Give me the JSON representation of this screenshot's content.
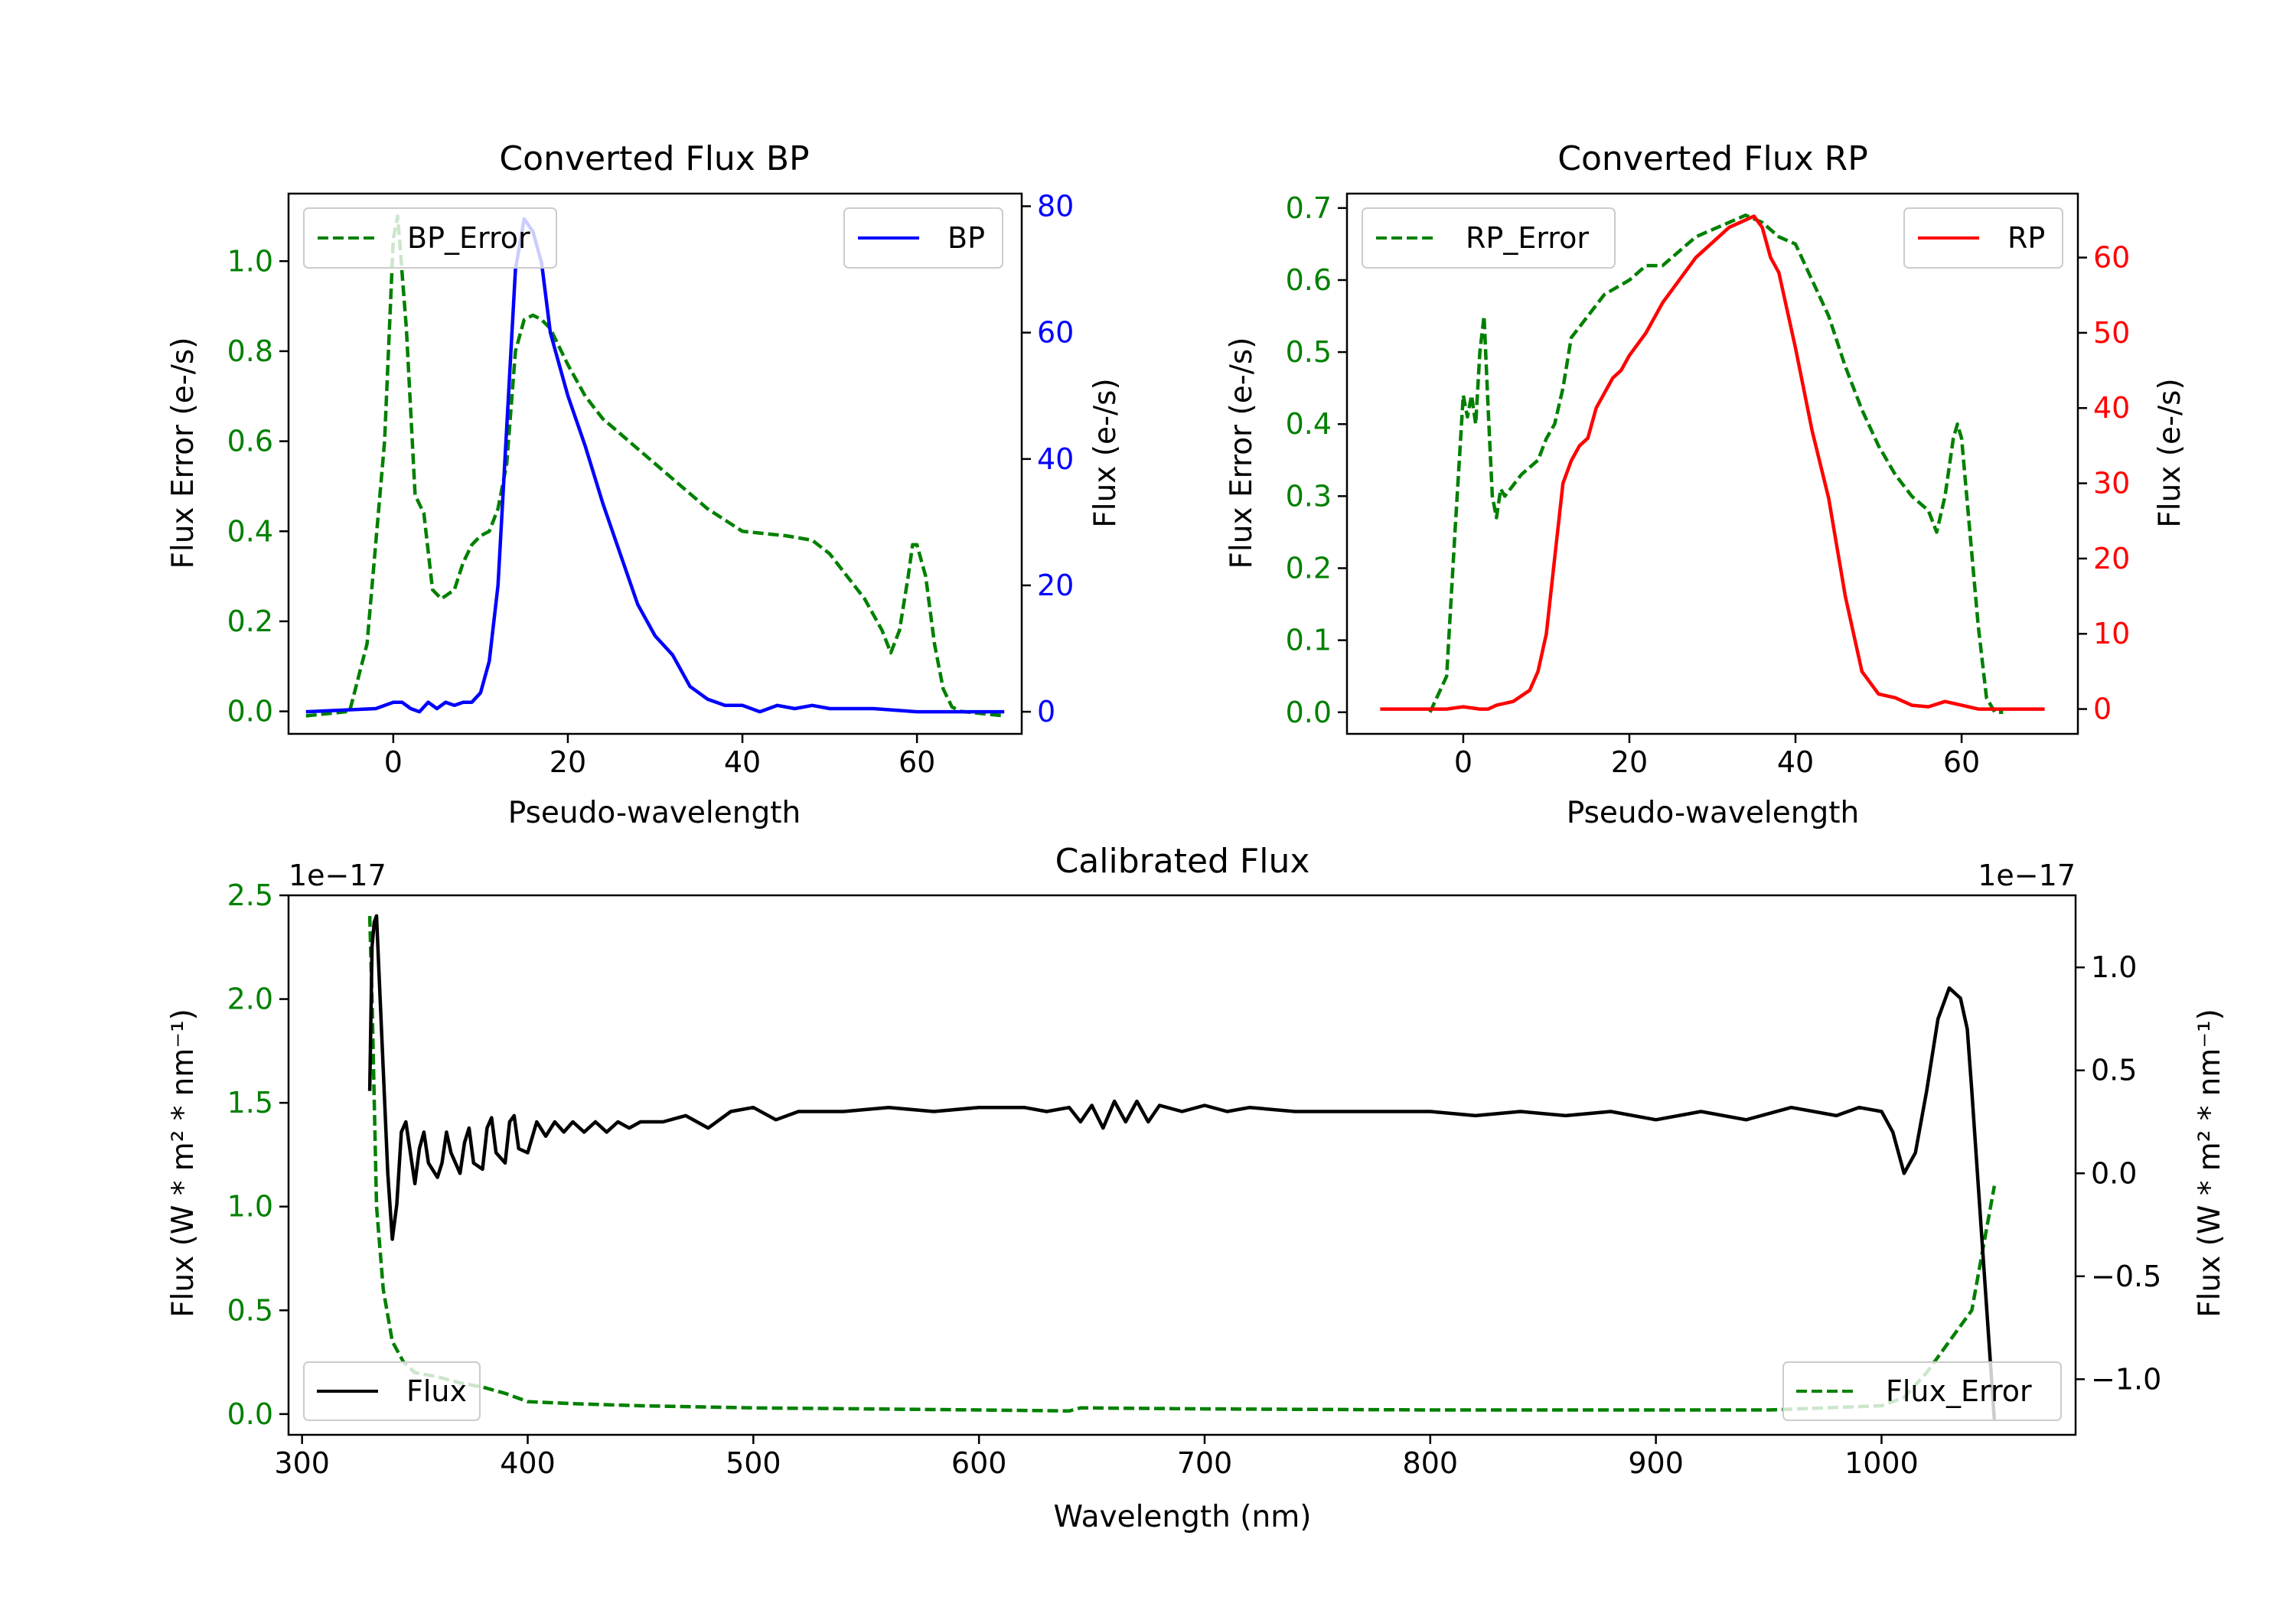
{
  "chart_data": [
    {
      "id": "bp",
      "type": "line",
      "title": "Converted Flux BP",
      "xlabel": "Pseudo-wavelength",
      "ylabel_left": "Flux Error (e-/s)",
      "ylabel_right": "Flux (e-/s)",
      "xlim": [
        -12,
        72
      ],
      "ylim_left": [
        -0.05,
        1.15
      ],
      "ylim_right": [
        -3.5,
        82
      ],
      "xticks": [
        0,
        20,
        40,
        60
      ],
      "yticks_left": [
        0.0,
        0.2,
        0.4,
        0.6,
        0.8,
        1.0
      ],
      "yticks_right": [
        0,
        20,
        40,
        60,
        80
      ],
      "left_color": "#008000",
      "right_color": "#0000ff",
      "legend_left": {
        "label": "BP_Error",
        "placement": "top-left"
      },
      "legend_right": {
        "label": "BP",
        "placement": "top-right"
      },
      "series": [
        {
          "name": "BP_Error",
          "axis": "left",
          "style": "dashed",
          "color": "#008000",
          "x": [
            -10,
            -5,
            -3,
            -1,
            0,
            0.5,
            1.5,
            2.5,
            3.5,
            4.5,
            5.5,
            7,
            8,
            9,
            10,
            11,
            12,
            13,
            14,
            15,
            16,
            17,
            18,
            20,
            22,
            24,
            27,
            30,
            33,
            36,
            40,
            45,
            48,
            50,
            52,
            54,
            56,
            57,
            58,
            59,
            59.5,
            60,
            61,
            62,
            63,
            64,
            65,
            70
          ],
          "y": [
            -0.01,
            0.0,
            0.15,
            0.6,
            1.05,
            1.1,
            0.85,
            0.48,
            0.44,
            0.27,
            0.25,
            0.27,
            0.33,
            0.37,
            0.39,
            0.4,
            0.45,
            0.55,
            0.8,
            0.87,
            0.88,
            0.87,
            0.85,
            0.77,
            0.7,
            0.65,
            0.6,
            0.55,
            0.5,
            0.45,
            0.4,
            0.39,
            0.38,
            0.35,
            0.3,
            0.25,
            0.18,
            0.13,
            0.18,
            0.3,
            0.37,
            0.37,
            0.3,
            0.15,
            0.05,
            0.01,
            0.0,
            -0.01
          ]
        },
        {
          "name": "BP",
          "axis": "right",
          "style": "solid",
          "color": "#0000ff",
          "x": [
            -10,
            -2,
            0,
            1,
            2,
            3,
            4,
            5,
            6,
            7,
            8,
            9,
            10,
            11,
            12,
            13,
            14,
            15,
            16,
            17,
            18,
            19,
            20,
            22,
            24,
            26,
            28,
            30,
            32,
            34,
            35,
            36,
            38,
            40,
            42,
            44,
            46,
            48,
            50,
            55,
            60,
            65,
            70
          ],
          "y": [
            0,
            0.5,
            1.5,
            1.5,
            0.5,
            0.0,
            1.5,
            0.5,
            1.5,
            1.0,
            1.5,
            1.5,
            3.0,
            8.0,
            20.0,
            45.0,
            70.0,
            78.0,
            76.0,
            71.0,
            60.0,
            55.0,
            50.0,
            42.0,
            33.0,
            25.0,
            17.0,
            12.0,
            9.0,
            4.0,
            3.0,
            2.0,
            1.0,
            1.0,
            0.0,
            1.0,
            0.5,
            1.0,
            0.5,
            0.5,
            0.0,
            0.0,
            0.0
          ]
        }
      ]
    },
    {
      "id": "rp",
      "type": "line",
      "title": "Converted Flux RP",
      "xlabel": "Pseudo-wavelength",
      "ylabel_left": "Flux Error (e-/s)",
      "ylabel_right": "Flux (e-/s)",
      "xlim": [
        -14,
        74
      ],
      "ylim_left": [
        -0.03,
        0.72
      ],
      "ylim_right": [
        -3.3,
        68.5
      ],
      "xticks": [
        0,
        20,
        40,
        60
      ],
      "yticks_left": [
        0.0,
        0.1,
        0.2,
        0.3,
        0.4,
        0.5,
        0.6,
        0.7
      ],
      "yticks_right": [
        0,
        10,
        20,
        30,
        40,
        50,
        60
      ],
      "left_color": "#008000",
      "right_color": "#ff0000",
      "legend_left": {
        "label": "RP_Error",
        "placement": "top-left"
      },
      "legend_right": {
        "label": "RP",
        "placement": "top-right"
      },
      "series": [
        {
          "name": "RP_Error",
          "axis": "left",
          "style": "dashed",
          "color": "#008000",
          "x": [
            -4,
            -2,
            -1,
            0,
            0.5,
            1,
            1.5,
            2,
            2.5,
            3,
            3.5,
            4,
            4.5,
            5,
            7,
            9,
            10,
            11,
            12,
            13,
            15,
            17,
            20,
            22,
            24,
            26,
            28,
            30,
            32,
            34,
            36,
            38,
            40,
            42,
            44,
            46,
            48,
            50,
            52,
            54,
            56,
            57,
            58,
            59,
            59.5,
            60,
            61,
            62,
            63,
            64,
            65
          ],
          "y": [
            0.0,
            0.05,
            0.25,
            0.44,
            0.41,
            0.44,
            0.4,
            0.5,
            0.55,
            0.42,
            0.3,
            0.27,
            0.31,
            0.3,
            0.33,
            0.35,
            0.38,
            0.4,
            0.45,
            0.52,
            0.55,
            0.58,
            0.6,
            0.62,
            0.62,
            0.64,
            0.66,
            0.67,
            0.68,
            0.69,
            0.68,
            0.66,
            0.65,
            0.6,
            0.55,
            0.48,
            0.42,
            0.37,
            0.33,
            0.3,
            0.28,
            0.25,
            0.3,
            0.38,
            0.4,
            0.38,
            0.25,
            0.12,
            0.02,
            0.0,
            0.0
          ]
        },
        {
          "name": "RP",
          "axis": "right",
          "style": "solid",
          "color": "#ff0000",
          "x": [
            -10,
            -2,
            0,
            2,
            3,
            4,
            6,
            8,
            9,
            10,
            11,
            12,
            13,
            14,
            15,
            16,
            17,
            18,
            19,
            20,
            22,
            24,
            26,
            28,
            30,
            32,
            34,
            35,
            36,
            37,
            38,
            40,
            42,
            44,
            46,
            48,
            50,
            52,
            54,
            56,
            58,
            60,
            62,
            65,
            70
          ],
          "y": [
            0,
            0,
            0.3,
            0.0,
            0.0,
            0.5,
            1.0,
            2.5,
            5.0,
            10.0,
            20.0,
            30.0,
            33.0,
            35.0,
            36.0,
            40.0,
            42.0,
            44.0,
            45.0,
            47.0,
            50.0,
            54.0,
            57.0,
            60.0,
            62.0,
            64.0,
            65.0,
            65.5,
            64.0,
            60.0,
            58.0,
            48.0,
            37.0,
            28.0,
            15.0,
            5.0,
            2.0,
            1.5,
            0.5,
            0.3,
            1.0,
            0.5,
            0.0,
            0.0,
            0.0
          ]
        }
      ]
    },
    {
      "id": "cal",
      "type": "line",
      "title": "Calibrated Flux",
      "xlabel": "Wavelength (nm)",
      "ylabel_left": "Flux (W * m² * nm⁻¹)",
      "ylabel_right": "Flux (W * m² * nm⁻¹)",
      "offset_left": "1e−17",
      "offset_right": "1e−17",
      "xlim": [
        294,
        1086
      ],
      "ylim_left": [
        -0.1,
        2.5
      ],
      "ylim_right": [
        -1.27,
        1.35
      ],
      "xticks": [
        300,
        400,
        500,
        600,
        700,
        800,
        900,
        1000
      ],
      "yticks_left": [
        0.0,
        0.5,
        1.0,
        1.5,
        2.0,
        2.5
      ],
      "yticks_right": [
        -1.0,
        -0.5,
        0.0,
        0.5,
        1.0
      ],
      "ytick_labels_right": [
        "−1.0",
        "−0.5",
        "0.0",
        "0.5",
        "1.0"
      ],
      "left_color": "#008000",
      "right_color": "#000000",
      "legend_left": {
        "label": "Flux",
        "placement": "bottom-left"
      },
      "legend_right": {
        "label": "Flux_Error",
        "placement": "bottom-right"
      },
      "series": [
        {
          "name": "Flux_Error",
          "axis": "left",
          "style": "dashed",
          "color": "#008000",
          "x": [
            330,
            331,
            333,
            336,
            340,
            345,
            350,
            360,
            370,
            380,
            390,
            400,
            420,
            450,
            500,
            550,
            600,
            640,
            645,
            700,
            800,
            900,
            950,
            1000,
            1010,
            1020,
            1030,
            1040,
            1045,
            1050
          ],
          "y": [
            2.4,
            2.0,
            1.0,
            0.6,
            0.35,
            0.25,
            0.2,
            0.18,
            0.15,
            0.13,
            0.1,
            0.06,
            0.05,
            0.04,
            0.03,
            0.025,
            0.02,
            0.015,
            0.03,
            0.025,
            0.02,
            0.02,
            0.02,
            0.04,
            0.08,
            0.2,
            0.35,
            0.5,
            0.8,
            1.1
          ]
        },
        {
          "name": "Flux",
          "axis": "right",
          "style": "solid",
          "color": "#000000",
          "x": [
            330,
            331,
            332,
            333,
            334,
            336,
            338,
            340,
            342,
            344,
            346,
            350,
            352,
            354,
            356,
            360,
            362,
            364,
            366,
            370,
            372,
            374,
            376,
            380,
            382,
            384,
            386,
            390,
            392,
            394,
            396,
            400,
            404,
            408,
            412,
            416,
            420,
            425,
            430,
            435,
            440,
            445,
            450,
            460,
            470,
            480,
            490,
            500,
            510,
            520,
            530,
            540,
            560,
            580,
            600,
            620,
            630,
            640,
            645,
            650,
            655,
            660,
            665,
            670,
            675,
            680,
            690,
            700,
            710,
            720,
            740,
            760,
            780,
            800,
            820,
            840,
            860,
            880,
            900,
            920,
            940,
            960,
            980,
            990,
            1000,
            1005,
            1010,
            1015,
            1020,
            1025,
            1030,
            1035,
            1038,
            1040,
            1045,
            1050
          ],
          "y": [
            0.4,
            1.1,
            1.22,
            1.25,
            1.0,
            0.5,
            0.0,
            -0.32,
            -0.15,
            0.2,
            0.25,
            -0.05,
            0.12,
            0.2,
            0.05,
            -0.02,
            0.05,
            0.2,
            0.1,
            0.0,
            0.15,
            0.22,
            0.05,
            0.02,
            0.22,
            0.27,
            0.1,
            0.05,
            0.25,
            0.28,
            0.12,
            0.1,
            0.25,
            0.18,
            0.25,
            0.2,
            0.25,
            0.2,
            0.25,
            0.2,
            0.25,
            0.22,
            0.25,
            0.25,
            0.28,
            0.22,
            0.3,
            0.32,
            0.26,
            0.3,
            0.3,
            0.3,
            0.32,
            0.3,
            0.32,
            0.32,
            0.3,
            0.32,
            0.25,
            0.33,
            0.22,
            0.35,
            0.25,
            0.35,
            0.25,
            0.33,
            0.3,
            0.33,
            0.3,
            0.32,
            0.3,
            0.3,
            0.3,
            0.3,
            0.28,
            0.3,
            0.28,
            0.3,
            0.26,
            0.3,
            0.26,
            0.32,
            0.28,
            0.32,
            0.3,
            0.2,
            0.0,
            0.1,
            0.4,
            0.75,
            0.9,
            0.85,
            0.7,
            0.4,
            -0.4,
            -1.2
          ]
        }
      ]
    }
  ]
}
